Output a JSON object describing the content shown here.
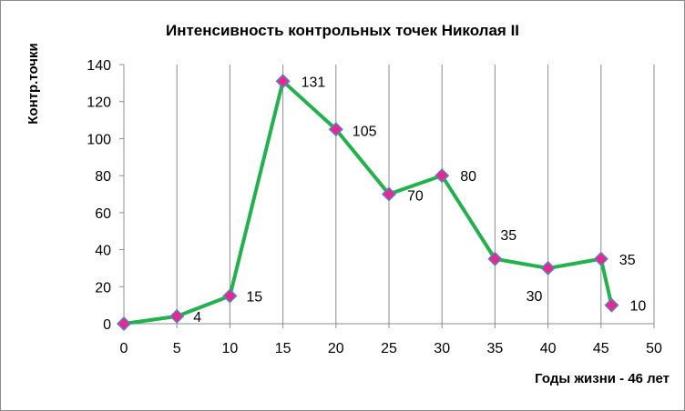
{
  "chart_data": {
    "type": "line",
    "title": "Интенсивность контрольных точек Николая II",
    "xlabel": "Годы жизни - 46 лет",
    "ylabel": "Контр.точки",
    "xlim": [
      0,
      50
    ],
    "ylim": [
      0,
      140
    ],
    "xticks": [
      0,
      5,
      10,
      15,
      20,
      25,
      30,
      35,
      40,
      45,
      50
    ],
    "yticks": [
      0,
      20,
      40,
      60,
      80,
      100,
      120,
      140
    ],
    "grid": "vertical",
    "legend": "none",
    "series": [
      {
        "x": [
          0,
          5,
          10,
          15,
          20,
          25,
          30,
          35,
          40,
          45,
          46
        ],
        "y": [
          0,
          4,
          15,
          131,
          105,
          70,
          80,
          35,
          30,
          35,
          10
        ],
        "labels": [
          "",
          "4",
          "15",
          "131",
          "105",
          "70",
          "80",
          "35",
          "30",
          "35",
          "10"
        ],
        "line_color": "#22b14c",
        "marker_fill": "#e8288f",
        "marker_stroke": "#5b7fc4"
      }
    ]
  }
}
